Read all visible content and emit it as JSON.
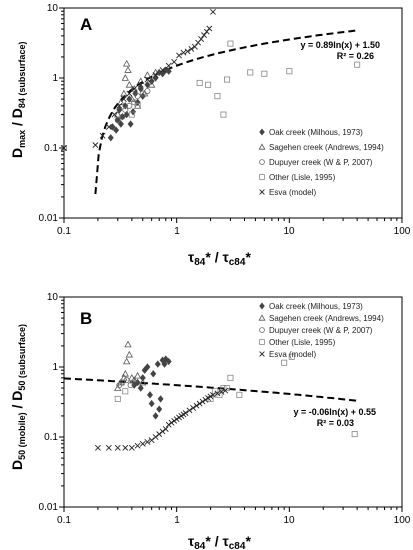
{
  "chart_data": [
    {
      "type": "scatter",
      "panel": "A",
      "xscale": "log",
      "yscale": "log",
      "xlim": [
        0.1,
        100
      ],
      "ylim": [
        0.01,
        10
      ],
      "xticks": [
        "0.1",
        "1",
        "10",
        "100"
      ],
      "yticks": [
        "0.01",
        "0.1",
        "1",
        "10"
      ],
      "xlabel": "τ84* / τc84*",
      "ylabel": "Dmax / D84 (subsurface)",
      "legend_position": "bottom-right",
      "fit": {
        "a": 0.89,
        "b": 1.5,
        "equation": "y = 0.89ln(x) + 1.50",
        "r2": "R² = 0.26"
      },
      "series": [
        {
          "name": "Oak creek (Milhous, 1973)",
          "marker": "diamond",
          "points": [
            [
              0.26,
              0.14
            ],
            [
              0.27,
              0.2
            ],
            [
              0.29,
              0.18
            ],
            [
              0.3,
              0.25
            ],
            [
              0.31,
              0.35
            ],
            [
              0.32,
              0.22
            ],
            [
              0.33,
              0.28
            ],
            [
              0.35,
              0.4
            ],
            [
              0.36,
              0.3
            ],
            [
              0.38,
              0.5
            ],
            [
              0.39,
              0.22
            ],
            [
              0.41,
              0.33
            ],
            [
              0.43,
              0.6
            ],
            [
              0.45,
              0.45
            ],
            [
              0.48,
              0.7
            ],
            [
              0.5,
              0.55
            ],
            [
              0.55,
              0.8
            ],
            [
              0.6,
              0.9
            ],
            [
              0.65,
              1.0
            ],
            [
              0.7,
              1.2
            ],
            [
              0.75,
              1.15
            ],
            [
              0.8,
              1.3
            ],
            [
              0.85,
              1.25
            ]
          ]
        },
        {
          "name": "Sagehen creek (Andrews, 1994)",
          "marker": "triangle",
          "points": [
            [
              0.3,
              0.3
            ],
            [
              0.32,
              0.45
            ],
            [
              0.34,
              0.6
            ],
            [
              0.35,
              1.0
            ],
            [
              0.36,
              1.6
            ],
            [
              0.37,
              1.3
            ],
            [
              0.38,
              0.8
            ],
            [
              0.4,
              0.5
            ],
            [
              0.42,
              0.7
            ],
            [
              0.45,
              0.4
            ],
            [
              0.48,
              0.9
            ],
            [
              0.52,
              0.6
            ],
            [
              0.55,
              1.1
            ],
            [
              0.6,
              0.8
            ],
            [
              0.65,
              1.2
            ]
          ]
        },
        {
          "name": "Dupuyer creek (W & P, 2007)",
          "marker": "circle",
          "points": [
            [
              0.3,
              0.25
            ],
            [
              0.33,
              0.28
            ],
            [
              0.35,
              0.35
            ],
            [
              0.38,
              0.4
            ],
            [
              0.42,
              0.45
            ],
            [
              0.45,
              0.55
            ],
            [
              0.5,
              0.6
            ],
            [
              0.55,
              0.65
            ]
          ]
        },
        {
          "name": "Other (Lisle, 1995)",
          "marker": "square",
          "points": [
            [
              0.1,
              0.1
            ],
            [
              0.4,
              0.3
            ],
            [
              0.45,
              0.4
            ],
            [
              1.6,
              0.85
            ],
            [
              1.9,
              0.8
            ],
            [
              2.3,
              0.55
            ],
            [
              2.6,
              0.3
            ],
            [
              2.8,
              0.95
            ],
            [
              3.0,
              3.1
            ],
            [
              4.5,
              1.2
            ],
            [
              6.0,
              1.15
            ],
            [
              10.0,
              1.25
            ],
            [
              40.0,
              1.55
            ]
          ]
        },
        {
          "name": "Esva (model)",
          "marker": "x",
          "points": [
            [
              0.1,
              0.1
            ],
            [
              0.19,
              0.11
            ],
            [
              0.22,
              0.15
            ],
            [
              0.25,
              0.2
            ],
            [
              0.28,
              0.3
            ],
            [
              0.31,
              0.4
            ],
            [
              0.34,
              0.5
            ],
            [
              0.38,
              0.6
            ],
            [
              0.42,
              0.7
            ],
            [
              0.48,
              0.8
            ],
            [
              0.55,
              0.95
            ],
            [
              0.65,
              1.1
            ],
            [
              0.75,
              1.3
            ],
            [
              0.85,
              1.5
            ],
            [
              0.95,
              1.7
            ],
            [
              1.05,
              2.1
            ],
            [
              1.15,
              2.3
            ],
            [
              1.25,
              2.4
            ],
            [
              1.35,
              2.6
            ],
            [
              1.45,
              2.8
            ],
            [
              1.55,
              3.2
            ],
            [
              1.65,
              3.6
            ],
            [
              1.75,
              4.1
            ],
            [
              1.85,
              4.6
            ],
            [
              1.95,
              5.1
            ],
            [
              2.1,
              8.8
            ]
          ]
        }
      ]
    },
    {
      "type": "scatter",
      "panel": "B",
      "xscale": "log",
      "yscale": "log",
      "xlim": [
        0.1,
        100
      ],
      "ylim": [
        0.01,
        10
      ],
      "xticks": [
        "0.1",
        "1",
        "10",
        "100"
      ],
      "yticks": [
        "0.01",
        "0.1",
        "1",
        "10"
      ],
      "xlabel": "τ84* / τc84*",
      "ylabel": "D50 (mobile) / D50 (subsurface)",
      "legend_position": "top-right",
      "fit": {
        "a": -0.06,
        "b": 0.55,
        "equation": "y = -0.06ln(x) + 0.55",
        "r2": "R² = 0.03"
      },
      "series": [
        {
          "name": "Oak creek (Milhous, 1973)",
          "marker": "diamond",
          "points": [
            [
              0.42,
              0.55
            ],
            [
              0.45,
              0.6
            ],
            [
              0.48,
              0.5
            ],
            [
              0.5,
              0.7
            ],
            [
              0.52,
              0.9
            ],
            [
              0.55,
              1.0
            ],
            [
              0.58,
              0.4
            ],
            [
              0.6,
              0.3
            ],
            [
              0.62,
              0.8
            ],
            [
              0.65,
              0.2
            ],
            [
              0.68,
              1.1
            ],
            [
              0.7,
              0.25
            ],
            [
              0.72,
              0.35
            ],
            [
              0.75,
              1.25
            ],
            [
              0.78,
              1.1
            ],
            [
              0.8,
              1.3
            ],
            [
              0.85,
              1.2
            ]
          ]
        },
        {
          "name": "Sagehen creek (Andrews, 1994)",
          "marker": "triangle",
          "points": [
            [
              0.3,
              0.5
            ],
            [
              0.32,
              0.6
            ],
            [
              0.34,
              0.7
            ],
            [
              0.35,
              0.8
            ],
            [
              0.36,
              1.2
            ],
            [
              0.37,
              2.1
            ],
            [
              0.38,
              1.5
            ],
            [
              0.4,
              0.7
            ],
            [
              0.42,
              0.65
            ],
            [
              0.45,
              0.75
            ],
            [
              0.5,
              0.6
            ]
          ]
        },
        {
          "name": "Dupuyer creek (W & P, 2007)",
          "marker": "circle",
          "points": [
            [
              0.31,
              0.55
            ],
            [
              0.33,
              0.6
            ],
            [
              0.36,
              0.65
            ],
            [
              0.39,
              0.55
            ]
          ]
        },
        {
          "name": "Other (Lisle, 1995)",
          "marker": "square",
          "points": [
            [
              0.3,
              0.35
            ],
            [
              0.35,
              0.45
            ],
            [
              2.0,
              0.35
            ],
            [
              2.2,
              0.45
            ],
            [
              2.4,
              0.4
            ],
            [
              2.6,
              0.5
            ],
            [
              2.8,
              0.5
            ],
            [
              3.0,
              0.7
            ],
            [
              3.6,
              0.4
            ],
            [
              9.0,
              1.15
            ],
            [
              10.5,
              1.4
            ],
            [
              38.0,
              0.11
            ]
          ]
        },
        {
          "name": "Esva (model)",
          "marker": "x",
          "points": [
            [
              0.2,
              0.07
            ],
            [
              0.25,
              0.07
            ],
            [
              0.3,
              0.07
            ],
            [
              0.35,
              0.07
            ],
            [
              0.4,
              0.07
            ],
            [
              0.45,
              0.075
            ],
            [
              0.5,
              0.08
            ],
            [
              0.55,
              0.085
            ],
            [
              0.6,
              0.09
            ],
            [
              0.65,
              0.1
            ],
            [
              0.7,
              0.11
            ],
            [
              0.75,
              0.12
            ],
            [
              0.8,
              0.13
            ],
            [
              0.85,
              0.15
            ],
            [
              0.9,
              0.16
            ],
            [
              0.95,
              0.17
            ],
            [
              1.0,
              0.18
            ],
            [
              1.05,
              0.19
            ],
            [
              1.1,
              0.2
            ],
            [
              1.15,
              0.21
            ],
            [
              1.2,
              0.22
            ],
            [
              1.3,
              0.24
            ],
            [
              1.4,
              0.26
            ],
            [
              1.5,
              0.28
            ],
            [
              1.6,
              0.3
            ],
            [
              1.7,
              0.32
            ],
            [
              1.8,
              0.34
            ],
            [
              1.9,
              0.36
            ],
            [
              2.0,
              0.38
            ],
            [
              2.1,
              0.4
            ],
            [
              2.3,
              0.42
            ],
            [
              2.5,
              0.44
            ],
            [
              2.7,
              0.46
            ]
          ]
        }
      ]
    }
  ]
}
